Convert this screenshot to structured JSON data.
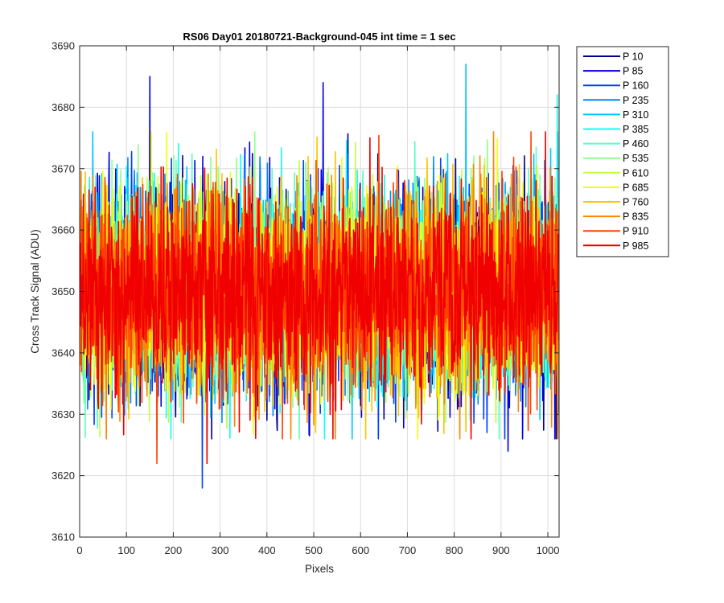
{
  "chart_data": {
    "type": "line",
    "title": "RS06 Day01 20180721-Background-045 int time = 1 sec",
    "xlabel": "Pixels",
    "ylabel": "Cross Track Signal (ADU)",
    "xlim": [
      0,
      1024
    ],
    "ylim": [
      3610,
      3690
    ],
    "xticks": [
      0,
      100,
      200,
      300,
      400,
      500,
      600,
      700,
      800,
      900,
      1000
    ],
    "yticks": [
      3610,
      3620,
      3630,
      3640,
      3650,
      3660,
      3670,
      3680,
      3690
    ],
    "grid": true,
    "legend_position": "outside-top-right",
    "n_points": 1024,
    "noise_mean": 3650,
    "noise_sd": 8,
    "series": [
      {
        "name": "P 10",
        "color": "#00008f"
      },
      {
        "name": "P 85",
        "color": "#0000e1"
      },
      {
        "name": "P 160",
        "color": "#0040ff"
      },
      {
        "name": "P 235",
        "color": "#0086ff"
      },
      {
        "name": "P 310",
        "color": "#00c4ff"
      },
      {
        "name": "P 385",
        "color": "#10fff0"
      },
      {
        "name": "P 460",
        "color": "#58ffc0"
      },
      {
        "name": "P 535",
        "color": "#8fff8f"
      },
      {
        "name": "P 610",
        "color": "#c0ff40"
      },
      {
        "name": "P 685",
        "color": "#f0ff10"
      },
      {
        "name": "P 760",
        "color": "#ffc400"
      },
      {
        "name": "P 835",
        "color": "#ff8600"
      },
      {
        "name": "P 910",
        "color": "#ff4000"
      },
      {
        "name": "P 985",
        "color": "#f00000"
      }
    ],
    "notable_points": [
      {
        "series": "P 85",
        "x": 150,
        "y": 3685
      },
      {
        "series": "P 85",
        "x": 520,
        "y": 3684
      },
      {
        "series": "P 310",
        "x": 825,
        "y": 3687
      },
      {
        "series": "P 385",
        "x": 1020,
        "y": 3682
      },
      {
        "series": "P 160",
        "x": 262,
        "y": 3618
      },
      {
        "series": "P 910",
        "x": 165,
        "y": 3622
      },
      {
        "series": "P 985",
        "x": 272,
        "y": 3622
      },
      {
        "series": "P 85",
        "x": 915,
        "y": 3624
      }
    ]
  }
}
